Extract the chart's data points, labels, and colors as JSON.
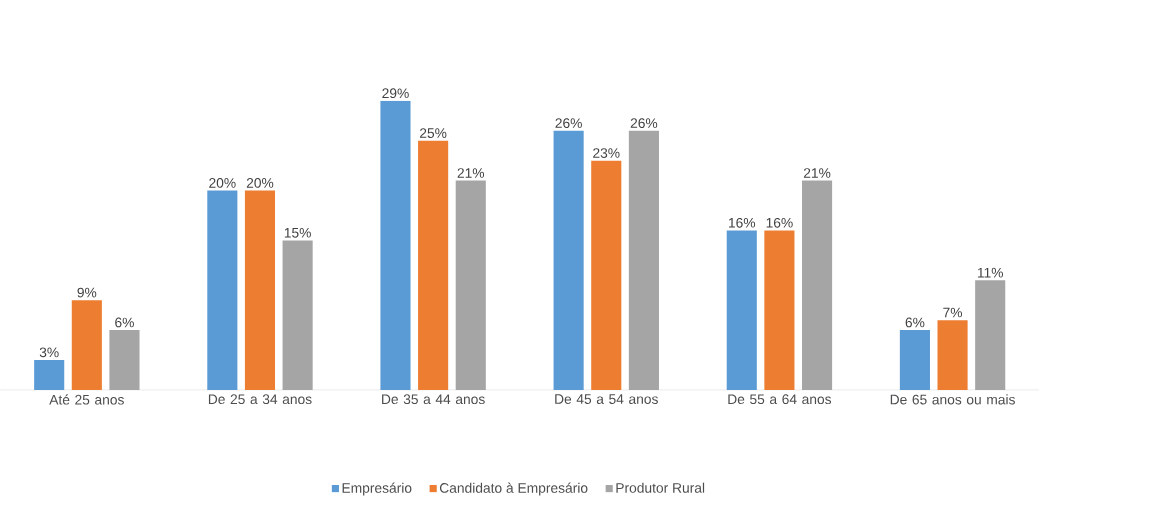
{
  "chart_data": {
    "type": "bar",
    "categories": [
      "Até 25 anos",
      "De 25 a 34 anos",
      "De 35 a 44 anos",
      "De 45 a 54 anos",
      "De 55 a 64 anos",
      "De 65 anos ou mais"
    ],
    "series": [
      {
        "name": "Empresário",
        "color": "#5b9bd5",
        "values": [
          3,
          20,
          29,
          26,
          16,
          6
        ],
        "value_labels": [
          "3%",
          "20%",
          "29%",
          "26%",
          "16%",
          "6%"
        ]
      },
      {
        "name": "Candidato à Empresário",
        "color": "#ed7d31",
        "values": [
          9,
          20,
          25,
          23,
          16,
          7
        ],
        "value_labels": [
          "9%",
          "20%",
          "25%",
          "23%",
          "16%",
          "7%"
        ]
      },
      {
        "name": "Produtor Rural",
        "color": "#a5a5a5",
        "values": [
          6,
          15,
          21,
          26,
          21,
          11
        ],
        "value_labels": [
          "6%",
          "15%",
          "21%",
          "26%",
          "21%",
          "11%"
        ]
      }
    ],
    "legend": "bottom"
  }
}
